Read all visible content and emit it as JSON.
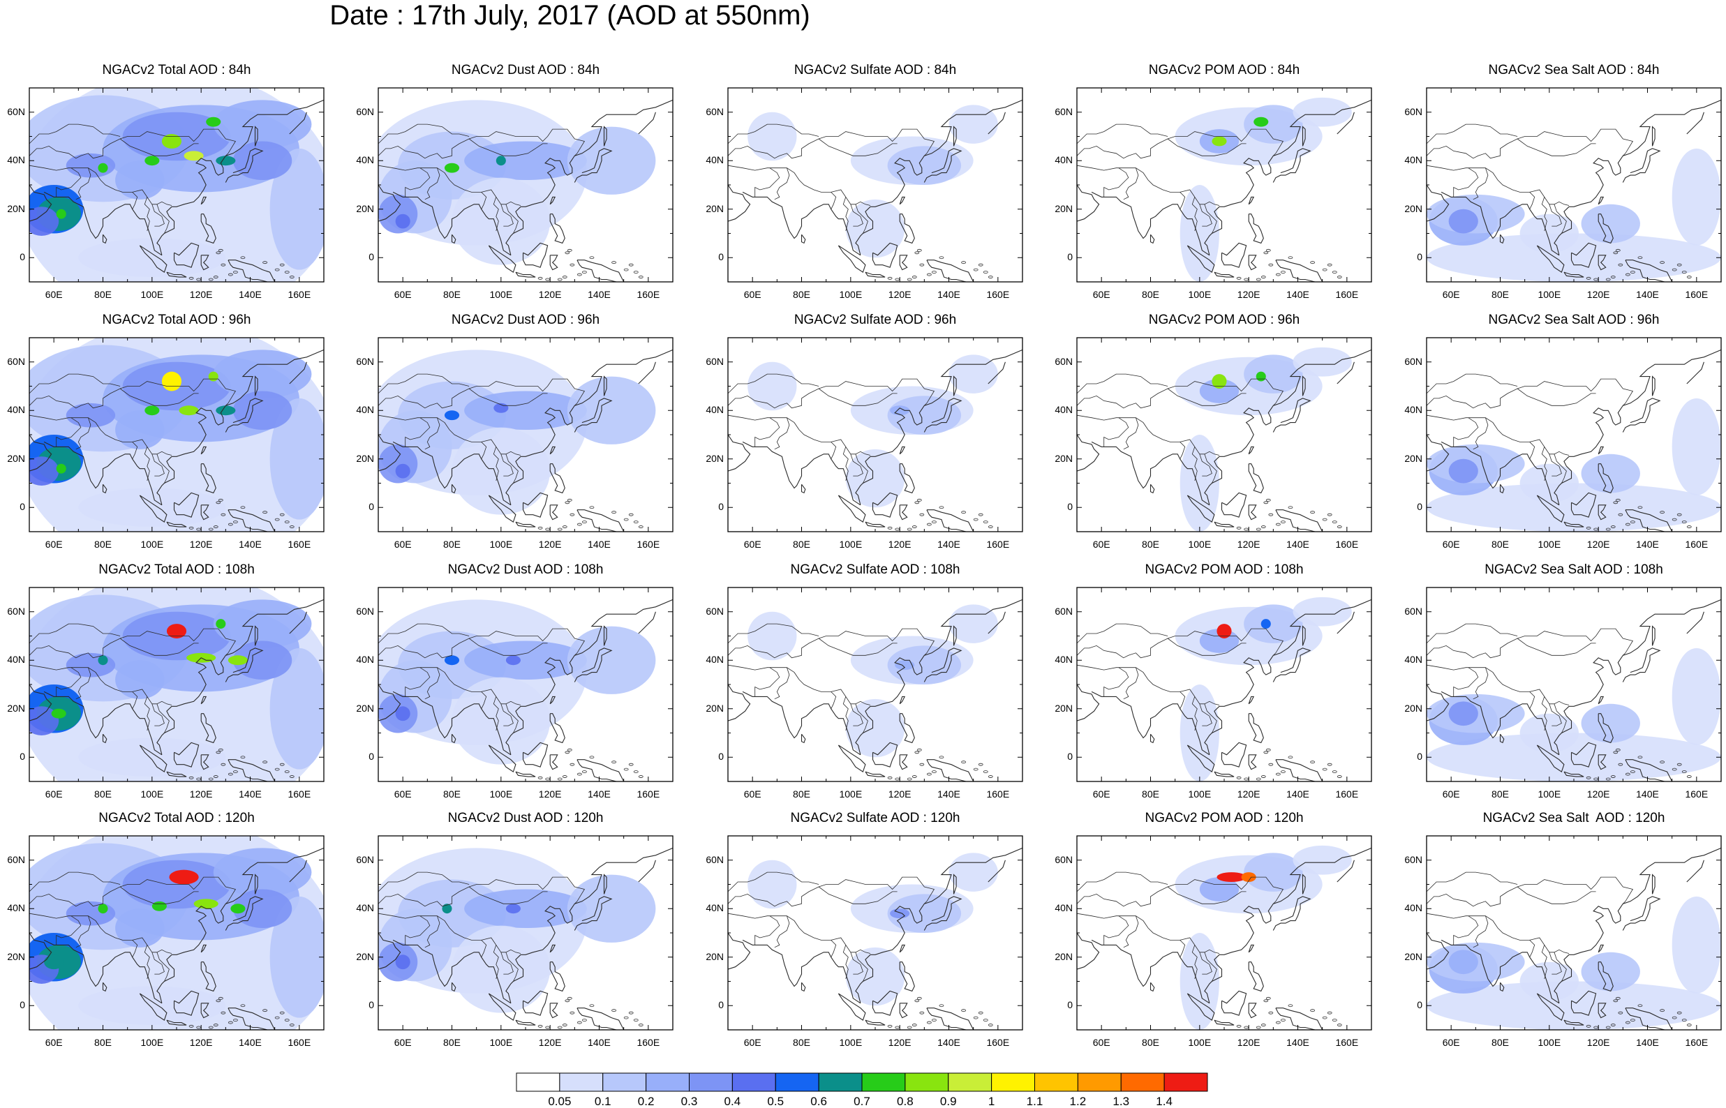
{
  "title": "Date : 17th July, 2017 (AOD at 550nm)",
  "rows": [
    "84h",
    "96h",
    "108h",
    "120h"
  ],
  "columns": [
    "Total",
    "Dust",
    "Sulfate",
    "POM",
    "Sea Salt"
  ],
  "panel_titles": [
    [
      "NGACv2 Total AOD : 84h",
      "NGACv2 Dust AOD : 84h",
      "NGACv2 Sulfate AOD : 84h",
      "NGACv2 POM AOD : 84h",
      "NGACv2 Sea Salt AOD : 84h"
    ],
    [
      "NGACv2 Total AOD : 96h",
      "NGACv2 Dust AOD : 96h",
      "NGACv2 Sulfate AOD : 96h",
      "NGACv2 POM AOD : 96h",
      "NGACv2 Sea Salt AOD : 96h"
    ],
    [
      "NGACv2 Total AOD : 108h",
      "NGACv2 Dust AOD : 108h",
      "NGACv2 Sulfate AOD : 108h",
      "NGACv2 POM AOD : 108h",
      "NGACv2 Sea Salt AOD : 108h"
    ],
    [
      "NGACv2 Total AOD : 120h",
      "NGACv2 Dust AOD : 120h",
      "NGACv2 Sulfate AOD : 120h",
      "NGACv2 POM AOD : 120h",
      "NGACv2 Sea Salt  AOD : 120h"
    ]
  ],
  "lat_ticks": [
    "60N",
    "40N",
    "20N",
    "0"
  ],
  "lon_ticks": [
    "60E",
    "80E",
    "100E",
    "120E",
    "140E",
    "160E"
  ],
  "colorbar": {
    "labels": [
      "0.05",
      "0.1",
      "0.2",
      "0.3",
      "0.4",
      "0.5",
      "0.6",
      "0.7",
      "0.8",
      "0.9",
      "1",
      "1.1",
      "1.2",
      "1.3",
      "1.4"
    ],
    "colors": [
      "#ffffff",
      "#d6dffc",
      "#b7c8fb",
      "#98affa",
      "#7d94f5",
      "#5a6ff0",
      "#1565f2",
      "#0b8f8a",
      "#27cc19",
      "#89e40f",
      "#c9ee37",
      "#fff200",
      "#ffc400",
      "#ff9a00",
      "#ff6a00",
      "#ee1c14"
    ]
  },
  "colors": {
    "coast": "#2a2a2a",
    "frame": "#000000"
  }
}
